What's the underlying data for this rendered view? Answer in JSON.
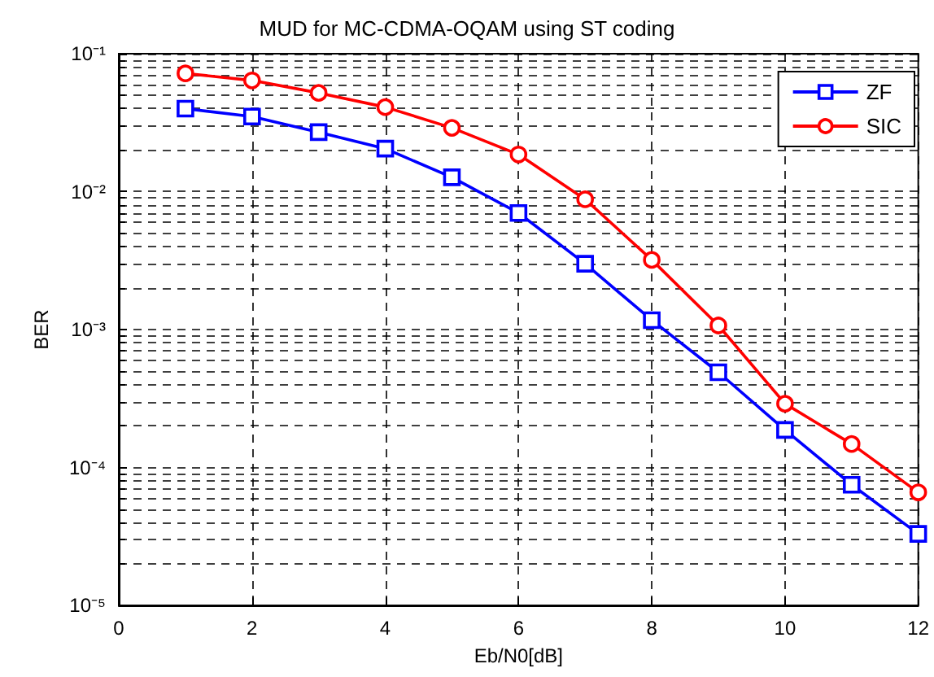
{
  "chart_data": {
    "type": "line",
    "title": "MUD for MC-CDMA-OQAM using ST coding",
    "xlabel": "Eb/N0[dB]",
    "ylabel": "BER",
    "log": "y",
    "x": [
      1,
      2,
      3,
      4,
      5,
      6,
      7,
      8,
      9,
      10,
      11,
      12
    ],
    "series": [
      {
        "name": "ZF",
        "color": "#0000ff",
        "marker": "square",
        "values": [
          0.04,
          0.035,
          0.027,
          0.0205,
          0.0127,
          0.007,
          0.003,
          0.00117,
          0.00049,
          0.000187,
          7.5e-05,
          3.3e-05
        ]
      },
      {
        "name": "SIC",
        "color": "#ff0000",
        "marker": "circle",
        "values": [
          0.072,
          0.064,
          0.052,
          0.041,
          0.029,
          0.0186,
          0.0088,
          0.0032,
          0.00107,
          0.00029,
          0.000148,
          6.6e-05
        ]
      }
    ],
    "xlim": [
      0,
      12
    ],
    "xticks": [
      0,
      2,
      4,
      6,
      8,
      10,
      12
    ],
    "ylim": [
      1e-05,
      0.1
    ],
    "yticks": [
      {
        "value": 1e-05,
        "label": "10⁻⁵"
      },
      {
        "value": 0.0001,
        "label": "10⁻⁴"
      },
      {
        "value": 0.001,
        "label": "10⁻³"
      },
      {
        "value": 0.01,
        "label": "10⁻²"
      },
      {
        "value": 0.1,
        "label": "10⁻¹"
      }
    ],
    "grid": true,
    "legend": "top right",
    "line_style": "solid"
  }
}
